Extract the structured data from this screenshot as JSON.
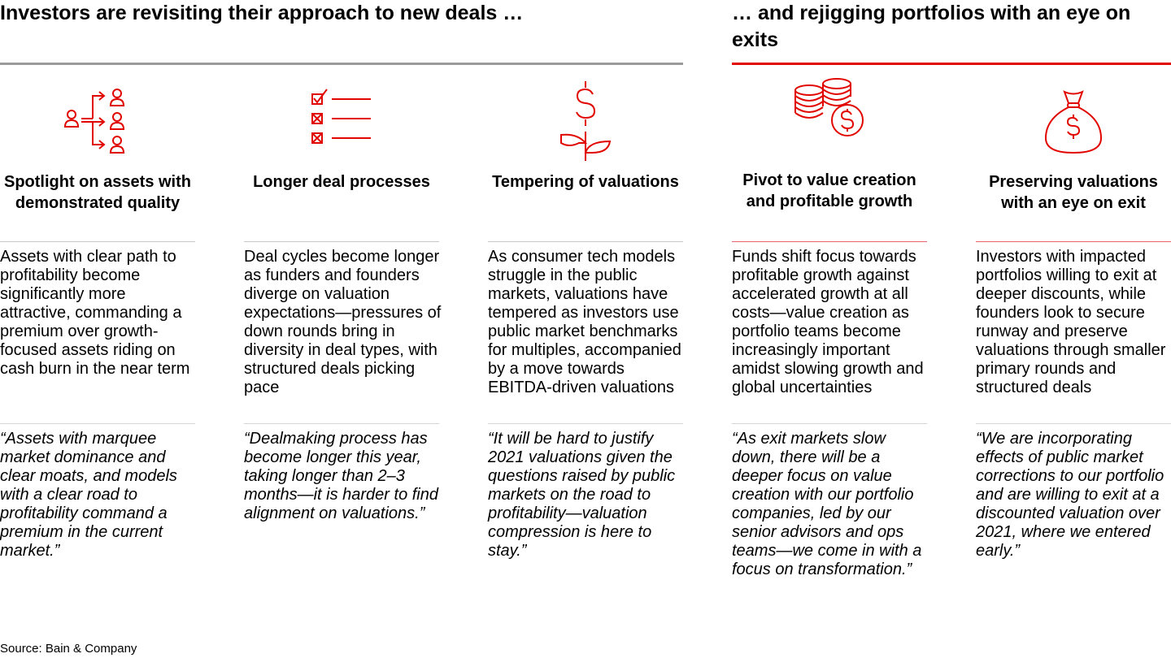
{
  "header": {
    "left_title": "Investors are revisiting their approach to new deals …",
    "right_title": "… and rejigging portfolios with an eye on exits"
  },
  "columns": [
    {
      "icon": "people-arrows-icon",
      "title": "Spotlight on assets with demonstrated quality",
      "body": "Assets with clear path to profitability become significantly more attractive, commanding a premium over growth-focused assets riding on cash burn in the near term",
      "quote": "“Assets with marquee market dominance and clear moats, and models with a clear road to profitability command a premium in the current market.”"
    },
    {
      "icon": "checklist-icon",
      "title": "Longer deal processes",
      "body": "Deal cycles become longer as funders and founders diverge on valuation expectations—pressures of down rounds bring in diversity in deal types, with structured deals picking pace",
      "quote": "“Dealmaking process has become longer this year, taking longer than 2–3 months—it is harder to find alignment on valuations.”"
    },
    {
      "icon": "dollar-plant-icon",
      "title": "Tempering of valuations",
      "body": "As consumer tech models struggle in the public markets, valuations have tempered as investors use public market benchmarks for multiples, accompanied by a move towards EBITDA-driven valuations",
      "quote": "“It will be hard to justify 2021 valuations given the questions raised by public markets on the road to profitability—valuation compression is here to stay.”"
    },
    {
      "icon": "coin-stack-icon",
      "title": "Pivot to value creation and profitable growth",
      "body": "Funds shift focus towards profitable growth against accelerated growth at all costs—value creation as portfolio teams become increasingly important amidst slowing growth and global uncertainties",
      "quote": "“As exit markets slow down, there will be a deeper focus on value creation with our portfolio companies, led by our senior advisors and ops teams—we come in with a focus on transformation.”"
    },
    {
      "icon": "money-bag-icon",
      "title": "Preserving valuations with an eye on exit",
      "body": "Investors with impacted portfolios willing to exit at deeper discounts, while founders look to secure runway and preserve valuations through smaller primary rounds and structured deals",
      "quote": "“We are incorporating effects of public market corrections to our portfolio and are willing to exit at a discounted valuation over 2021, where we entered early.”"
    }
  ],
  "colors": {
    "accent_red": "#e10600",
    "rule_gray": "#9b9b9b"
  },
  "source": "Source: Bain & Company"
}
